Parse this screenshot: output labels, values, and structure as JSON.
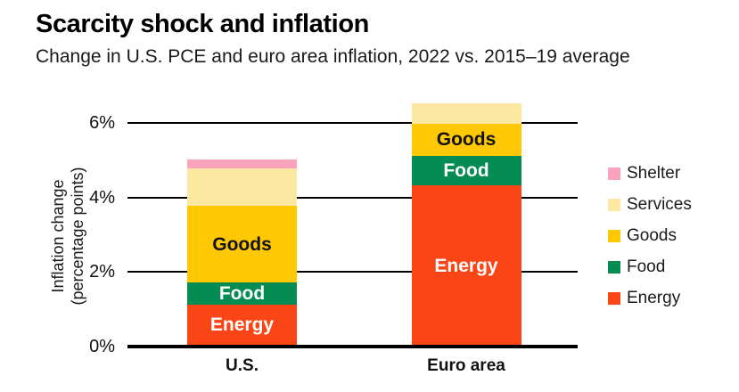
{
  "chart_data": {
    "type": "bar",
    "stacked": true,
    "title": "Scarcity shock and inflation",
    "subtitle": "Change in U.S. PCE and euro area inflation, 2022 vs. 2015–19 average",
    "xlabel": "",
    "ylabel": "Inflation change (percentage points)",
    "ylabel_lines": [
      "Inflation change",
      "(percentage points)"
    ],
    "ylim": [
      0,
      6.6
    ],
    "grid": "horizontal black gridlines at 2, 4, 6 drawn behind bars",
    "legend_position": "right",
    "categories": [
      "U.S.",
      "Euro area"
    ],
    "yticks": [
      {
        "value": 0,
        "label": "0%"
      },
      {
        "value": 2,
        "label": "2%"
      },
      {
        "value": 4,
        "label": "4%"
      },
      {
        "value": 6,
        "label": "6%"
      }
    ],
    "series": [
      {
        "name": "Energy",
        "color": "#FA4616",
        "text_color": "#ffffff",
        "show_in_bar_label": true,
        "values": [
          1.1,
          4.3
        ]
      },
      {
        "name": "Food",
        "color": "#058C52",
        "text_color": "#ffffff",
        "show_in_bar_label": true,
        "values": [
          0.6,
          0.8
        ]
      },
      {
        "name": "Goods",
        "color": "#FFC805",
        "text_color": "#111111",
        "show_in_bar_label": true,
        "values": [
          2.05,
          0.85
        ]
      },
      {
        "name": "Services",
        "color": "#FCE8A0",
        "text_color": "#111111",
        "show_in_bar_label": false,
        "values": [
          1.0,
          0.55
        ]
      },
      {
        "name": "Shelter",
        "color": "#F9A3BC",
        "text_color": "#111111",
        "show_in_bar_label": false,
        "values": [
          0.25,
          0
        ]
      }
    ],
    "legend": [
      {
        "label": "Shelter",
        "color": "#F9A3BC"
      },
      {
        "label": "Services",
        "color": "#FCE8A0"
      },
      {
        "label": "Goods",
        "color": "#FFC805"
      },
      {
        "label": "Food",
        "color": "#058C52"
      },
      {
        "label": "Energy",
        "color": "#FA4616"
      }
    ],
    "totals": {
      "U.S.": 5.0,
      "Euro area": 6.5
    }
  },
  "colors": {
    "background": "#ffffff",
    "text": "#111111",
    "axis": "#000000"
  }
}
